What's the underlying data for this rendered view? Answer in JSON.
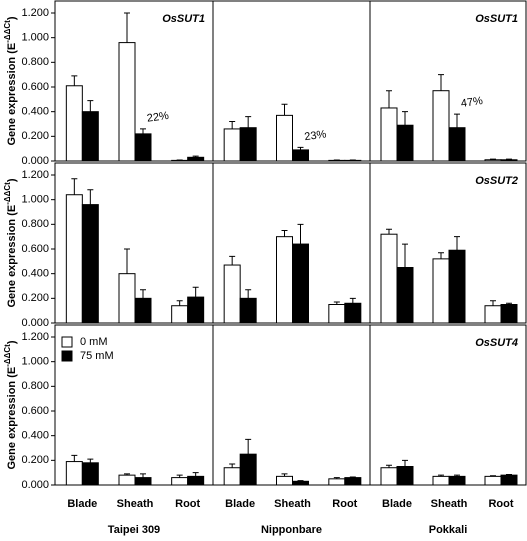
{
  "chart_data": [
    {
      "type": "bar",
      "title": "OsSUT1",
      "ylabel": [
        "Gene expression (E",
        "-ΔΔCt",
        ")"
      ],
      "ylim": [
        0,
        1.2
      ],
      "yticks": [
        {
          "value": 0,
          "label": "0.000"
        },
        {
          "value": 0.2,
          "label": "0.200"
        },
        {
          "value": 0.4,
          "label": "0.400"
        },
        {
          "value": 0.6,
          "label": "0.600"
        },
        {
          "value": 0.8,
          "label": "0.800"
        },
        {
          "value": 1.0,
          "label": "1.000"
        },
        {
          "value": 1.2,
          "label": "1.200"
        }
      ],
      "annotation": "22%",
      "series": [
        {
          "color": "#ffffff",
          "values": [
            0.61,
            0.96,
            0.005
          ],
          "errors": [
            0.08,
            0.24,
            0.003
          ]
        },
        {
          "color": "#000000",
          "values": [
            0.4,
            0.22,
            0.03
          ],
          "errors": [
            0.09,
            0.04,
            0.01
          ]
        }
      ]
    },
    {
      "type": "bar",
      "ylim": [
        0,
        1.2
      ],
      "annotation": "23%",
      "series": [
        {
          "color": "#ffffff",
          "values": [
            0.26,
            0.37,
            0.005
          ],
          "errors": [
            0.06,
            0.09,
            0.003
          ]
        },
        {
          "color": "#000000",
          "values": [
            0.27,
            0.09,
            0.005
          ],
          "errors": [
            0.09,
            0.02,
            0.003
          ]
        }
      ]
    },
    {
      "type": "bar",
      "title": "OsSUT1",
      "ylim": [
        0,
        1.2
      ],
      "annotation": "47%",
      "series": [
        {
          "color": "#ffffff",
          "values": [
            0.43,
            0.57,
            0.01
          ],
          "errors": [
            0.14,
            0.13,
            0.005
          ]
        },
        {
          "color": "#000000",
          "values": [
            0.29,
            0.27,
            0.01
          ],
          "errors": [
            0.11,
            0.11,
            0.005
          ]
        }
      ]
    },
    {
      "type": "bar",
      "ylabel": [
        "Gene expression (E",
        "-ΔΔCt",
        ")"
      ],
      "ylim": [
        0,
        1.2
      ],
      "yticks": [
        {
          "value": 0,
          "label": "0.000"
        },
        {
          "value": 0.2,
          "label": "0.200"
        },
        {
          "value": 0.4,
          "label": "0.400"
        },
        {
          "value": 0.6,
          "label": "0.600"
        },
        {
          "value": 0.8,
          "label": "0.800"
        },
        {
          "value": 1.0,
          "label": "1.000"
        },
        {
          "value": 1.2,
          "label": "1.200"
        }
      ],
      "series": [
        {
          "color": "#ffffff",
          "values": [
            1.04,
            0.4,
            0.14
          ],
          "errors": [
            0.13,
            0.2,
            0.04
          ]
        },
        {
          "color": "#000000",
          "values": [
            0.96,
            0.2,
            0.21
          ],
          "errors": [
            0.12,
            0.07,
            0.08
          ]
        }
      ]
    },
    {
      "type": "bar",
      "ylim": [
        0,
        1.2
      ],
      "series": [
        {
          "color": "#ffffff",
          "values": [
            0.47,
            0.7,
            0.15
          ],
          "errors": [
            0.07,
            0.05,
            0.02
          ]
        },
        {
          "color": "#000000",
          "values": [
            0.2,
            0.64,
            0.16
          ],
          "errors": [
            0.07,
            0.16,
            0.04
          ]
        }
      ]
    },
    {
      "type": "bar",
      "title": "OsSUT2",
      "ylim": [
        0,
        1.2
      ],
      "series": [
        {
          "color": "#ffffff",
          "values": [
            0.72,
            0.52,
            0.14
          ],
          "errors": [
            0.04,
            0.05,
            0.04
          ]
        },
        {
          "color": "#000000",
          "values": [
            0.45,
            0.59,
            0.15
          ],
          "errors": [
            0.19,
            0.11,
            0.01
          ]
        }
      ]
    },
    {
      "type": "bar",
      "ylabel": [
        "Gene expression (E",
        "-ΔΔCt",
        ")"
      ],
      "ylim": [
        0,
        1.2
      ],
      "xlabel": "Taipei 309",
      "categories": [
        "Blade",
        "Sheath",
        "Root"
      ],
      "yticks": [
        {
          "value": 0,
          "label": "0.000"
        },
        {
          "value": 0.2,
          "label": "0.200"
        },
        {
          "value": 0.4,
          "label": "0.400"
        },
        {
          "value": 0.6,
          "label": "0.600"
        },
        {
          "value": 0.8,
          "label": "0.800"
        },
        {
          "value": 1.0,
          "label": "1.000"
        },
        {
          "value": 1.2,
          "label": "1.200"
        }
      ],
      "series": [
        {
          "name": "0 mM",
          "color": "#ffffff",
          "values": [
            0.19,
            0.08,
            0.06
          ],
          "errors": [
            0.05,
            0.01,
            0.02
          ]
        },
        {
          "name": "75 mM",
          "color": "#000000",
          "values": [
            0.18,
            0.06,
            0.07
          ],
          "errors": [
            0.03,
            0.03,
            0.03
          ]
        }
      ]
    },
    {
      "type": "bar",
      "ylim": [
        0,
        1.2
      ],
      "xlabel": "Nipponbare",
      "categories": [
        "Blade",
        "Sheath",
        "Root"
      ],
      "series": [
        {
          "color": "#ffffff",
          "values": [
            0.14,
            0.07,
            0.05
          ],
          "errors": [
            0.03,
            0.02,
            0.01
          ]
        },
        {
          "color": "#000000",
          "values": [
            0.25,
            0.03,
            0.06
          ],
          "errors": [
            0.12,
            0.005,
            0.005
          ]
        }
      ]
    },
    {
      "type": "bar",
      "title": "OsSUT4",
      "ylim": [
        0,
        1.2
      ],
      "xlabel": "Pokkali",
      "categories": [
        "Blade",
        "Sheath",
        "Root"
      ],
      "series": [
        {
          "color": "#ffffff",
          "values": [
            0.14,
            0.07,
            0.07
          ],
          "errors": [
            0.02,
            0.01,
            0.005
          ]
        },
        {
          "color": "#000000",
          "values": [
            0.15,
            0.07,
            0.08
          ],
          "errors": [
            0.05,
            0.01,
            0.005
          ]
        }
      ]
    }
  ]
}
